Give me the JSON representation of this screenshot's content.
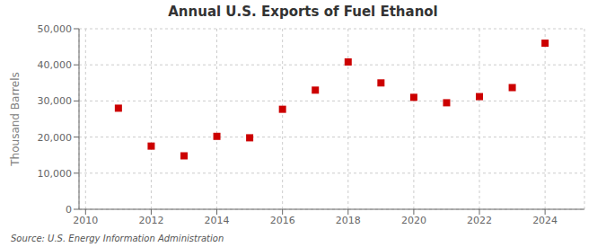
{
  "chart_data": {
    "type": "scatter",
    "title": "Annual U.S. Exports of Fuel Ethanol",
    "ylabel": "Thousand Barrels",
    "annotations": [
      "Source: U.S. Energy Information Administration"
    ],
    "x": [
      2011,
      2012,
      2013,
      2014,
      2015,
      2016,
      2017,
      2018,
      2019,
      2020,
      2021,
      2022,
      2023,
      2024
    ],
    "values": [
      28000,
      17500,
      14800,
      20200,
      19800,
      27700,
      33000,
      40800,
      35000,
      31000,
      29500,
      31200,
      33700,
      46000
    ],
    "color": "#cc0000",
    "marker": "square",
    "xlim": [
      2009.8,
      2025.2
    ],
    "xticks": [
      2010,
      2012,
      2014,
      2016,
      2018,
      2020,
      2022,
      2024
    ],
    "ylim": [
      0,
      50000
    ],
    "yticks": [
      0,
      {
        "value": 10000,
        "label": "10,000"
      },
      {
        "value": 20000,
        "label": "20,000"
      },
      {
        "value": 30000,
        "label": "30,000"
      },
      {
        "value": 40000,
        "label": "40,000"
      },
      {
        "value": 50000,
        "label": "50,000"
      }
    ],
    "grid": true
  }
}
